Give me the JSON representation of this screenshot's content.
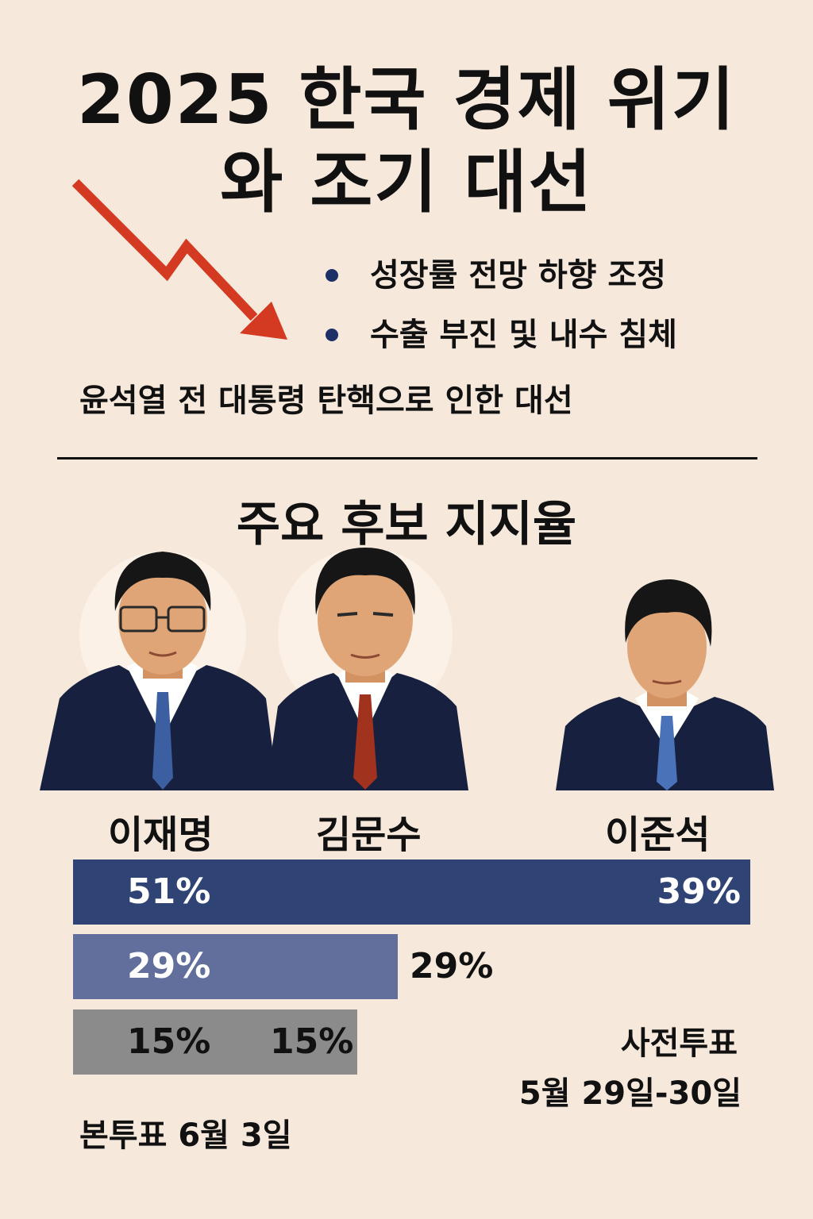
{
  "title_line1": "2025 한국 경제 위기",
  "title_line2": "와 조기 대선",
  "bullets": [
    "성장률 전망 하향 조정",
    "수출 부진 및 내수 침체"
  ],
  "subtitle": "윤석열 전 대통령 탄핵으로 인한 대선",
  "section_title": "주요 후보 지지율",
  "candidates": [
    {
      "name": "이재명",
      "tie_color": "#3b5fa0"
    },
    {
      "name": "김문수",
      "tie_color": "#a0321e"
    },
    {
      "name": "이준석",
      "tie_color": "#4a72b8"
    }
  ],
  "bars": [
    {
      "left_label": "51%",
      "right_label": "39%",
      "color": "#2f4475",
      "value": 100
    },
    {
      "left_label": "29%",
      "right_label": "29%",
      "color": "#626e9c",
      "value": 48
    },
    {
      "left_label": "15%",
      "right_label": "15%",
      "color": "#8b8b8b",
      "value": 42
    }
  ],
  "early_vote_label": "사전투표",
  "early_vote_dates": "5월 29일-30일",
  "main_vote": "본투표 6월 3일",
  "colors": {
    "background": "#f6e9dc",
    "arrow": "#d43a22",
    "suit": "#17213f",
    "skin": "#e0a576"
  }
}
